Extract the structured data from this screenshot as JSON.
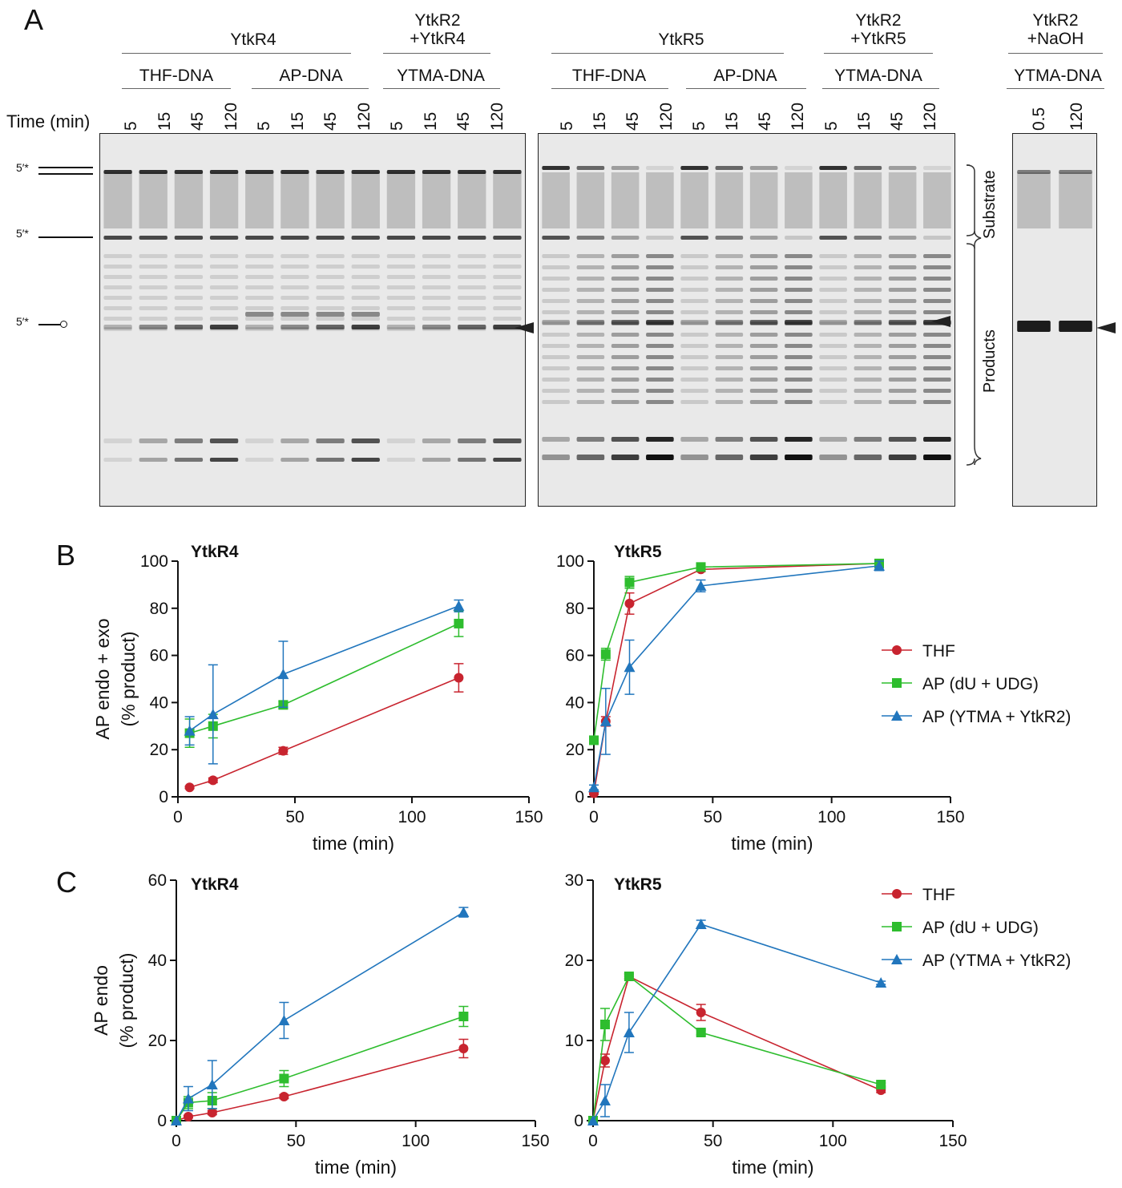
{
  "panelA": {
    "letter": "A",
    "time_label": "Time (min)",
    "groups": [
      {
        "label": "YtkR4"
      },
      {
        "label": "YtkR2\n+YtkR4"
      },
      {
        "label": "YtkR5"
      },
      {
        "label": "YtkR2\n+YtkR5"
      },
      {
        "label": "YtkR2\n+NaOH"
      }
    ],
    "subgroups": [
      "THF-DNA",
      "AP-DNA",
      "YTMA-DNA",
      "THF-DNA",
      "AP-DNA",
      "YTMA-DNA",
      "YTMA-DNA"
    ],
    "lane_times_gel1": [
      "5",
      "15",
      "45",
      "120",
      "5",
      "15",
      "45",
      "120",
      "5",
      "15",
      "45",
      "120"
    ],
    "lane_times_gel2": [
      "5",
      "15",
      "45",
      "120",
      "5",
      "15",
      "45",
      "120",
      "5",
      "15",
      "45",
      "120"
    ],
    "lane_times_gel3": [
      "0.5",
      "120"
    ],
    "marker_labels": [
      "5′*",
      "5′*",
      "5′*"
    ],
    "side_labels": {
      "substrate": "Substrate",
      "products": "Products"
    }
  },
  "panelB": {
    "letter": "B"
  },
  "panelC": {
    "letter": "C"
  },
  "legend": [
    "THF",
    "AP (dU + UDG)",
    "AP (YTMA + YtkR2)"
  ],
  "colors": {
    "THF": "#c8242f",
    "AP_dU": "#2ebd2e",
    "AP_YTMA": "#2176bd"
  },
  "chart_data": [
    {
      "type": "line",
      "title": "YtkR4",
      "xlabel": "time (min)",
      "ylabel": "AP endo + exo (% product)",
      "xlim": [
        0,
        150
      ],
      "ylim": [
        0,
        100
      ],
      "xticks": [
        0,
        50,
        100,
        150
      ],
      "yticks": [
        0,
        20,
        40,
        60,
        80,
        100
      ],
      "legend": false,
      "series": [
        {
          "name": "THF",
          "marker": "circle",
          "x": [
            5,
            15,
            45,
            120
          ],
          "y": [
            4,
            7,
            19.5,
            50.5
          ],
          "err": [
            0.5,
            1,
            1.5,
            6
          ]
        },
        {
          "name": "AP (dU + UDG)",
          "marker": "square",
          "x": [
            5,
            15,
            45,
            120
          ],
          "y": [
            27,
            30,
            39,
            73.5
          ],
          "err": [
            6,
            5,
            1.5,
            5.5
          ]
        },
        {
          "name": "AP (YTMA + YtkR2)",
          "marker": "triangle",
          "x": [
            5,
            15,
            45,
            120
          ],
          "y": [
            28,
            35,
            52,
            81
          ],
          "err": [
            6,
            21,
            14,
            2.5
          ]
        }
      ]
    },
    {
      "type": "line",
      "title": "YtkR5",
      "xlabel": "time (min)",
      "ylabel": "",
      "xlim": [
        0,
        150
      ],
      "ylim": [
        0,
        100
      ],
      "xticks": [
        0,
        50,
        100,
        150
      ],
      "yticks": [
        0,
        20,
        40,
        60,
        80,
        100
      ],
      "legend": true,
      "series": [
        {
          "name": "THF",
          "marker": "circle",
          "x": [
            0,
            5,
            15,
            45,
            120
          ],
          "y": [
            1.5,
            32,
            82,
            96.5,
            99
          ],
          "err": [
            0.5,
            2,
            4.5,
            1,
            1.5
          ]
        },
        {
          "name": "AP (dU + UDG)",
          "marker": "square",
          "x": [
            0,
            5,
            15,
            45,
            120
          ],
          "y": [
            24,
            60.5,
            91,
            97.5,
            99
          ],
          "err": [
            1,
            2.5,
            2.5,
            1,
            0.5
          ]
        },
        {
          "name": "AP (YTMA + YtkR2)",
          "marker": "triangle",
          "x": [
            0,
            5,
            15,
            45,
            120
          ],
          "y": [
            4,
            32,
            55,
            89.5,
            98
          ],
          "err": [
            1,
            14,
            11.5,
            2.5,
            2
          ]
        }
      ]
    },
    {
      "type": "line",
      "title": "YtkR4",
      "xlabel": "time (min)",
      "ylabel": "AP endo (% product)",
      "xlim": [
        0,
        150
      ],
      "ylim": [
        0,
        60
      ],
      "xticks": [
        0,
        50,
        100,
        150
      ],
      "yticks": [
        0,
        20,
        40,
        60
      ],
      "legend": false,
      "series": [
        {
          "name": "THF",
          "marker": "circle",
          "x": [
            0,
            5,
            15,
            45,
            120
          ],
          "y": [
            0,
            1,
            2,
            6,
            18
          ],
          "err": [
            0,
            0.3,
            0.5,
            0.5,
            2.3
          ]
        },
        {
          "name": "AP (dU + UDG)",
          "marker": "square",
          "x": [
            0,
            5,
            15,
            45,
            120
          ],
          "y": [
            0,
            4.5,
            5,
            10.5,
            26
          ],
          "err": [
            0,
            1.5,
            2,
            2,
            2.5
          ]
        },
        {
          "name": "AP (YTMA + YtkR2)",
          "marker": "triangle",
          "x": [
            0,
            5,
            15,
            45,
            120
          ],
          "y": [
            0,
            5.5,
            9,
            25,
            52
          ],
          "err": [
            0,
            3,
            6,
            4.5,
            1.2
          ]
        }
      ]
    },
    {
      "type": "line",
      "title": "YtkR5",
      "xlabel": "time (min)",
      "ylabel": "",
      "xlim": [
        0,
        150
      ],
      "ylim": [
        0,
        30
      ],
      "xticks": [
        0,
        50,
        100,
        150
      ],
      "yticks": [
        0,
        10,
        20,
        30
      ],
      "legend": true,
      "series": [
        {
          "name": "THF",
          "marker": "circle",
          "x": [
            0,
            5,
            15,
            45,
            120
          ],
          "y": [
            0,
            7.5,
            18,
            13.5,
            3.8
          ],
          "err": [
            0,
            0.8,
            0.3,
            1,
            0.3
          ]
        },
        {
          "name": "AP (dU + UDG)",
          "marker": "square",
          "x": [
            0,
            5,
            15,
            45,
            120
          ],
          "y": [
            0,
            12,
            18,
            11,
            4.5
          ],
          "err": [
            0,
            2,
            0.3,
            0.3,
            0.2
          ]
        },
        {
          "name": "AP (YTMA + YtkR2)",
          "marker": "triangle",
          "x": [
            0,
            5,
            15,
            45,
            120
          ],
          "y": [
            0,
            2.5,
            11,
            24.5,
            17.2
          ],
          "err": [
            0,
            2,
            2.5,
            0.5,
            0.2
          ]
        }
      ]
    }
  ]
}
